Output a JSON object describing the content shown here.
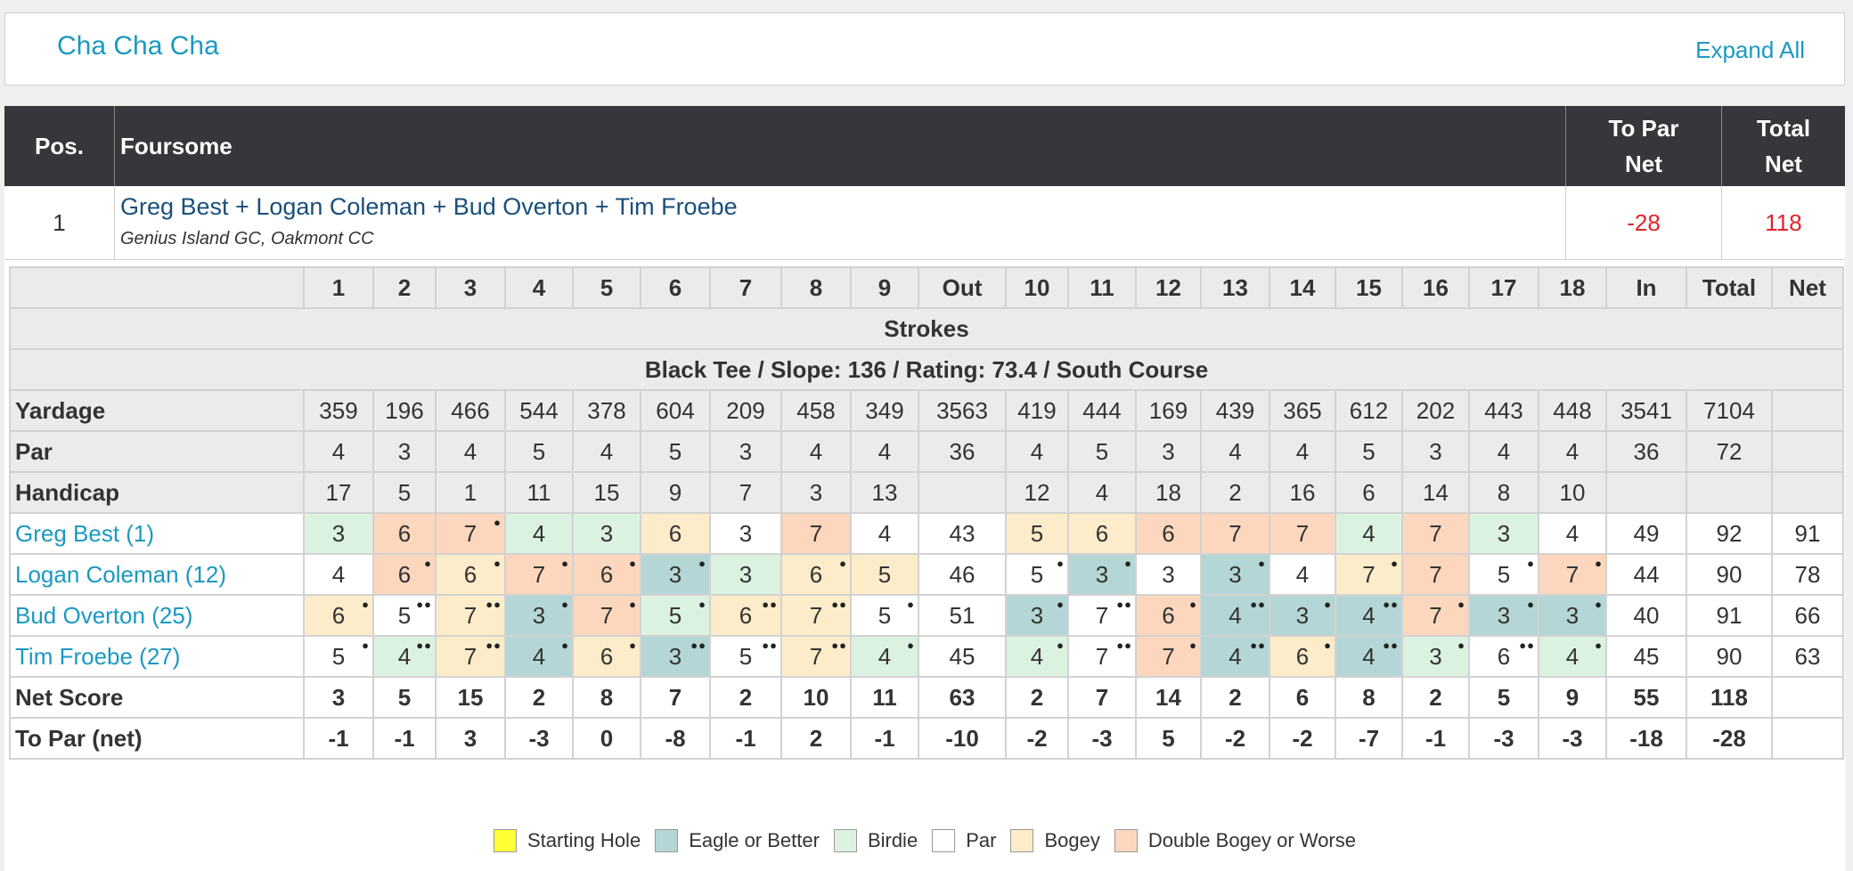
{
  "group": {
    "title": "Cha Cha Cha",
    "expand_label": "Expand All"
  },
  "header": {
    "pos": "Pos.",
    "foursome": "Foursome",
    "to_par_net": [
      "To Par",
      "Net"
    ],
    "total_net": [
      "Total",
      "Net"
    ]
  },
  "team": {
    "pos": "1",
    "names": "Greg Best + Logan Coleman + Bud Overton + Tim Froebe",
    "club": "Genius Island GC, Oakmont CC",
    "to_par_net": "-28",
    "total_net": "118"
  },
  "scorecard": {
    "columns": [
      "1",
      "2",
      "3",
      "4",
      "5",
      "6",
      "7",
      "8",
      "9",
      "Out",
      "10",
      "11",
      "12",
      "13",
      "14",
      "15",
      "16",
      "17",
      "18",
      "In",
      "Total",
      "Net"
    ],
    "strokes_label": "Strokes",
    "tee_info": "Black Tee / Slope: 136 / Rating: 73.4 / South Course",
    "info_rows": [
      {
        "label": "Yardage",
        "values": [
          "359",
          "196",
          "466",
          "544",
          "378",
          "604",
          "209",
          "458",
          "349",
          "3563",
          "419",
          "444",
          "169",
          "439",
          "365",
          "612",
          "202",
          "443",
          "448",
          "3541",
          "7104",
          ""
        ]
      },
      {
        "label": "Par",
        "values": [
          "4",
          "3",
          "4",
          "5",
          "4",
          "5",
          "3",
          "4",
          "4",
          "36",
          "4",
          "5",
          "3",
          "4",
          "4",
          "5",
          "3",
          "4",
          "4",
          "36",
          "72",
          ""
        ]
      },
      {
        "label": "Handicap",
        "values": [
          "17",
          "5",
          "1",
          "11",
          "15",
          "9",
          "7",
          "3",
          "13",
          "",
          "12",
          "4",
          "18",
          "2",
          "16",
          "6",
          "14",
          "8",
          "10",
          "",
          "",
          ""
        ]
      }
    ],
    "players": [
      {
        "name": "Greg Best (1)",
        "scores": [
          "3",
          "6",
          "7",
          "4",
          "3",
          "6",
          "3",
          "7",
          "4",
          "43",
          "5",
          "6",
          "6",
          "7",
          "7",
          "4",
          "7",
          "3",
          "4",
          "49",
          "92",
          "91"
        ],
        "results": [
          "birdie",
          "dbl",
          "dbl",
          "birdie",
          "birdie",
          "bogey",
          "par",
          "dbl",
          "par",
          "",
          "bogey",
          "bogey",
          "dbl",
          "dbl",
          "dbl",
          "birdie",
          "dbl",
          "birdie",
          "par",
          "",
          "",
          ""
        ],
        "dots": [
          0,
          0,
          1,
          0,
          0,
          0,
          0,
          0,
          0,
          0,
          0,
          0,
          0,
          0,
          0,
          0,
          0,
          0,
          0,
          0,
          0,
          0
        ]
      },
      {
        "name": "Logan Coleman (12)",
        "scores": [
          "4",
          "6",
          "6",
          "7",
          "6",
          "3",
          "3",
          "6",
          "5",
          "46",
          "5",
          "3",
          "3",
          "3",
          "4",
          "7",
          "7",
          "5",
          "7",
          "44",
          "90",
          "78"
        ],
        "results": [
          "par",
          "dbl",
          "bogey",
          "dbl",
          "dbl",
          "eagle",
          "birdie",
          "bogey",
          "bogey",
          "",
          "par",
          "eagle",
          "par",
          "eagle",
          "par",
          "bogey",
          "dbl",
          "par",
          "dbl",
          "",
          "",
          ""
        ],
        "dots": [
          0,
          1,
          1,
          1,
          1,
          1,
          0,
          1,
          0,
          0,
          1,
          1,
          0,
          1,
          0,
          1,
          0,
          1,
          1,
          0,
          0,
          0
        ]
      },
      {
        "name": "Bud Overton (25)",
        "scores": [
          "6",
          "5",
          "7",
          "3",
          "7",
          "5",
          "6",
          "7",
          "5",
          "51",
          "3",
          "7",
          "6",
          "4",
          "3",
          "4",
          "7",
          "3",
          "3",
          "40",
          "91",
          "66"
        ],
        "results": [
          "bogey",
          "par",
          "bogey",
          "eagle",
          "dbl",
          "birdie",
          "bogey",
          "bogey",
          "par",
          "",
          "eagle",
          "par",
          "dbl",
          "eagle",
          "eagle",
          "eagle",
          "dbl",
          "eagle",
          "eagle",
          "",
          "",
          ""
        ],
        "dots": [
          1,
          2,
          2,
          1,
          1,
          1,
          2,
          2,
          1,
          0,
          1,
          2,
          1,
          2,
          1,
          2,
          1,
          1,
          1,
          0,
          0,
          0
        ]
      },
      {
        "name": "Tim Froebe (27)",
        "scores": [
          "5",
          "4",
          "7",
          "4",
          "6",
          "3",
          "5",
          "7",
          "4",
          "45",
          "4",
          "7",
          "7",
          "4",
          "6",
          "4",
          "3",
          "6",
          "4",
          "45",
          "90",
          "63"
        ],
        "results": [
          "par",
          "birdie",
          "bogey",
          "eagle",
          "bogey",
          "eagle",
          "par",
          "bogey",
          "birdie",
          "",
          "birdie",
          "par",
          "dbl",
          "eagle",
          "bogey",
          "eagle",
          "birdie",
          "par",
          "birdie",
          "",
          "",
          ""
        ],
        "dots": [
          1,
          2,
          2,
          1,
          1,
          2,
          2,
          2,
          1,
          0,
          1,
          2,
          1,
          2,
          1,
          2,
          1,
          2,
          1,
          0,
          0,
          0
        ]
      }
    ],
    "net_score": {
      "label": "Net Score",
      "values": [
        "3",
        "5",
        "15",
        "2",
        "8",
        "7",
        "2",
        "10",
        "11",
        "63",
        "2",
        "7",
        "14",
        "2",
        "6",
        "8",
        "2",
        "5",
        "9",
        "55",
        "118",
        ""
      ]
    },
    "to_par_net": {
      "label": "To Par (net)",
      "values": [
        "-1",
        "-1",
        "3",
        "-3",
        "0",
        "-8",
        "-1",
        "2",
        "-1",
        "-10",
        "-2",
        "-3",
        "5",
        "-2",
        "-2",
        "-7",
        "-1",
        "-3",
        "-3",
        "-18",
        "-28",
        ""
      ]
    }
  },
  "legend": [
    {
      "label": "Starting Hole",
      "color": "#ffff33"
    },
    {
      "label": "Eagle or Better",
      "color": "#b5d6d6"
    },
    {
      "label": "Birdie",
      "color": "#dcf2e1"
    },
    {
      "label": "Par",
      "color": "#ffffff"
    },
    {
      "label": "Bogey",
      "color": "#fdecc9"
    },
    {
      "label": "Double Bogey or Worse",
      "color": "#fcd7bd"
    }
  ]
}
